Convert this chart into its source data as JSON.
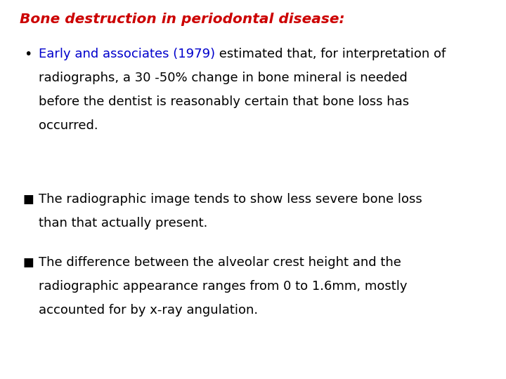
{
  "background_color": "#ffffff",
  "title": "Bone destruction in periodontal disease:",
  "title_color": "#cc0000",
  "title_fontsize": 14.5,
  "bullet1_blue_text": "Early and associates (1979)",
  "bullet1_black_text": " estimated that, for interpretation of",
  "bullet1_line2": "radiographs, a 30 -50% change in bone mineral is needed",
  "bullet1_line3": "before the dentist is reasonably certain that bone loss has",
  "bullet1_line4": "occurred.",
  "bullet2_line1": "The radiographic image tends to show less severe bone loss",
  "bullet2_line2": "than that actually present.",
  "bullet3_line1": "The difference between the alveolar crest height and the",
  "bullet3_line2": "radiographic appearance ranges from 0 to 1.6mm, mostly",
  "bullet3_line3": "accounted for by x-ray angulation.",
  "blue_color": "#0000cc",
  "text_color": "#000000",
  "text_fontsize": 13.0,
  "font_family": "DejaVu Sans"
}
